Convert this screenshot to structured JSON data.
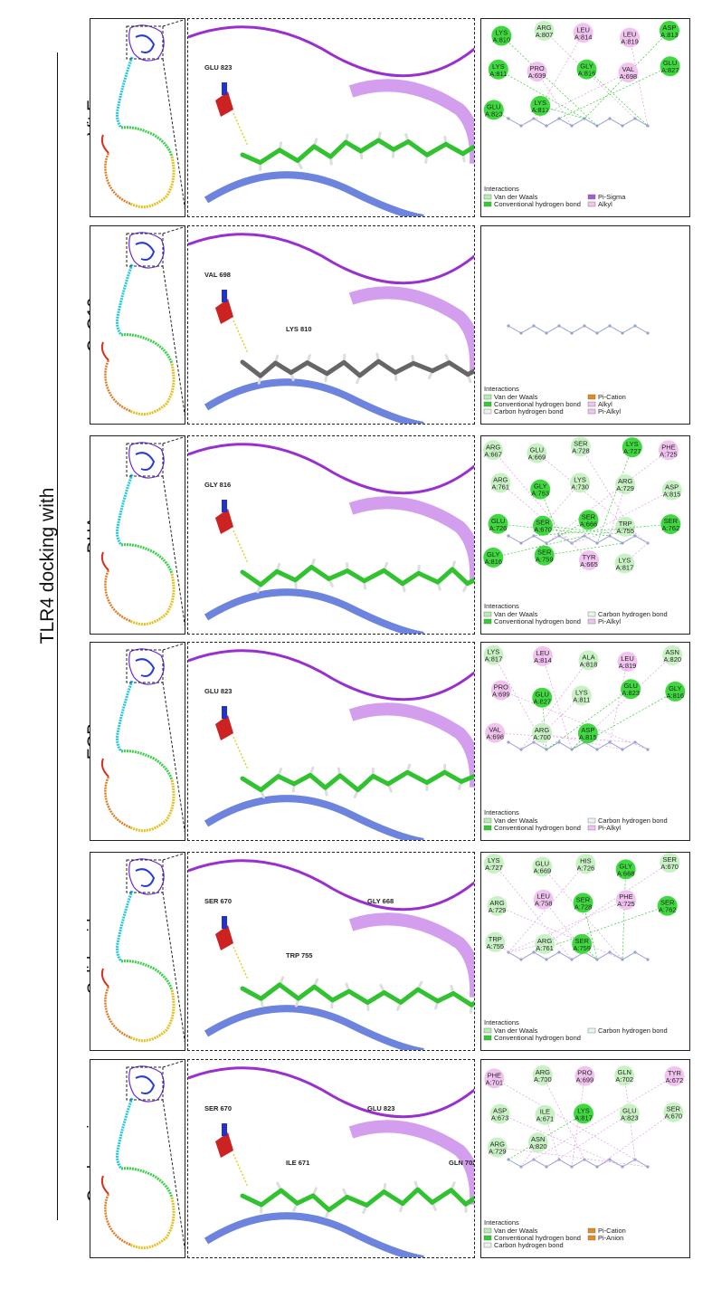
{
  "figure": {
    "title": "TLR4 docking with"
  },
  "rows": [
    {
      "label": "Vit E",
      "ligand_label": "GLU  823",
      "residues": [
        "LYS A:810",
        "ARG A:807",
        "LEU A:814",
        "LEU A:819",
        "ASP A:813",
        "LYS A:811",
        "PRO A:699",
        "GLY A:816",
        "VAL A:698",
        "GLU A:827",
        "GLU A:823",
        "LYS A:817"
      ],
      "legend_title": "Interactions",
      "legend": [
        {
          "text": "Van der Waals",
          "color": "#b6f0b0"
        },
        {
          "text": "Pi-Sigma",
          "color": "#a35bd6"
        },
        {
          "text": "Conventional hydrogen bond",
          "color": "#2fcf2f"
        },
        {
          "text": "Alkyl",
          "color": "#f0c4ef"
        }
      ]
    },
    {
      "label": "CoQ10",
      "ligand_labels": [
        "VAL 698",
        "LYS 810"
      ],
      "residues": [],
      "legend_title": "Interactions",
      "legend": [
        {
          "text": "Van der Waals",
          "color": "#b6f0b0"
        },
        {
          "text": "Pi-Cation",
          "color": "#e58a1e"
        },
        {
          "text": "Conventional hydrogen bond",
          "color": "#2fcf2f"
        },
        {
          "text": "Alkyl",
          "color": "#f0c4ef"
        },
        {
          "text": "Carbon hydrogen bond",
          "color": "#e8f5e8"
        },
        {
          "text": "Pi-Alkyl",
          "color": "#f0c4ef"
        }
      ]
    },
    {
      "label": "DHA",
      "ligand_label": "GLY 816",
      "residues": [
        "ARG A:667",
        "GLU A:669",
        "SER A:728",
        "LYS A:727",
        "PHE A:725",
        "ARG A:761",
        "GLY A:763",
        "LYS A:730",
        "ARG A:729",
        "ASP A:815",
        "GLU A:726",
        "SER A:670",
        "SER A:666",
        "TRP A:755",
        "SER A:762",
        "GLY A:816",
        "SER A:759",
        "TYR A:665",
        "LYS A:817"
      ],
      "legend_title": "Interactions",
      "legend": [
        {
          "text": "Van der Waals",
          "color": "#b6f0b0"
        },
        {
          "text": "Carbon hydrogen bond",
          "color": "#e8f5e8"
        },
        {
          "text": "Conventional hydrogen bond",
          "color": "#2fcf2f"
        },
        {
          "text": "Pi-Alkyl",
          "color": "#f0c4ef"
        }
      ]
    },
    {
      "label": "EGB",
      "ligand_label": "GLU  823",
      "residues": [
        "LYS A:817",
        "LEU A:814",
        "ALA A:818",
        "LEU A:819",
        "ASN A:820",
        "PRO A:699",
        "GLU A:827",
        "LYS A:811",
        "GLU A:823",
        "GLY A:816",
        "VAL A:698",
        "ARG A:700",
        "ASP A:815"
      ],
      "legend_title": "Interactions",
      "legend": [
        {
          "text": "Van der Waals",
          "color": "#b6f0b0"
        },
        {
          "text": "Carbon hydrogen bond",
          "color": "#e8f5e8"
        },
        {
          "text": "Conventional hydrogen bond",
          "color": "#2fcf2f"
        },
        {
          "text": "Pi-Alkyl",
          "color": "#f0c4ef"
        }
      ]
    },
    {
      "label": "Salidroside",
      "ligand_labels": [
        "SER 670",
        "TRP 755",
        "GLY 668"
      ],
      "residues": [
        "LYS A:727",
        "GLU A:669",
        "HIS A:726",
        "GLY A:668",
        "SER A:670",
        "ARG A:729",
        "LEU A:758",
        "SER A:728",
        "PHE A:725",
        "SER A:762",
        "TRP A:755",
        "ARG A:761",
        "SER A:759"
      ],
      "legend_title": "Interactions",
      "legend": [
        {
          "text": "Van der Waals",
          "color": "#b6f0b0"
        },
        {
          "text": "Carbon hydrogen bond",
          "color": "#e8f5e8"
        },
        {
          "text": "Conventional hydrogen bond",
          "color": "#2fcf2f"
        }
      ]
    },
    {
      "label": "Cordycepin",
      "ligand_labels": [
        "SER 670",
        "ILE 671",
        "GLU 823",
        "GLN 702"
      ],
      "residues": [
        "PHE A:701",
        "ARG A:700",
        "PRO A:699",
        "GLN A:702",
        "TYR A:672",
        "ASP A:673",
        "ILE A:671",
        "LYS A:817",
        "GLU A:823",
        "SER A:670",
        "ARG A:729",
        "ASN A:820"
      ],
      "legend_title": "Interactions",
      "legend": [
        {
          "text": "Van der Waals",
          "color": "#b6f0b0"
        },
        {
          "text": "Pi-Cation",
          "color": "#e58a1e"
        },
        {
          "text": "Conventional hydrogen bond",
          "color": "#2fcf2f"
        },
        {
          "text": "Pi-Anion",
          "color": "#e58a1e"
        },
        {
          "text": "Carbon hydrogen bond",
          "color": "#e8f5e8"
        }
      ]
    }
  ]
}
